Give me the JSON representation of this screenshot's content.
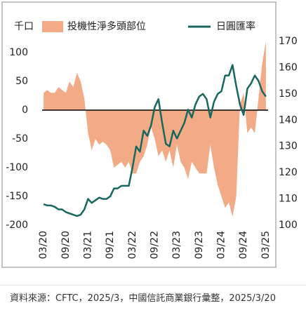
{
  "chart_data": {
    "type": "combo",
    "y_label": "千口",
    "categories": [
      "03/20",
      null,
      null,
      null,
      null,
      null,
      "09/20",
      null,
      null,
      null,
      null,
      null,
      "03/21",
      null,
      null,
      null,
      null,
      null,
      "09/21",
      null,
      null,
      null,
      null,
      null,
      "03/22",
      null,
      null,
      null,
      null,
      null,
      "09/22",
      null,
      null,
      null,
      null,
      null,
      "03/23",
      null,
      null,
      null,
      null,
      null,
      "09/23",
      null,
      null,
      null,
      null,
      null,
      "03/24",
      null,
      null,
      null,
      null,
      null,
      "09/24",
      null,
      null,
      null,
      null,
      null,
      "03/25"
    ],
    "series": [
      {
        "name": "投機性淨多頭部位",
        "type": "area",
        "color": "#f2ab86",
        "values": [
          30,
          35,
          30,
          30,
          40,
          35,
          30,
          50,
          40,
          65,
          50,
          20,
          -40,
          -70,
          -50,
          -60,
          -55,
          -60,
          -70,
          -100,
          -95,
          -90,
          -100,
          -90,
          -110,
          -110,
          -90,
          -80,
          -60,
          -30,
          -50,
          -80,
          -70,
          -90,
          -70,
          -100,
          -60,
          -90,
          -100,
          -120,
          -90,
          -100,
          -110,
          -110,
          -110,
          -60,
          -100,
          -130,
          -150,
          -170,
          -160,
          -185,
          -150,
          10,
          30,
          -40,
          -30,
          -40,
          20,
          80,
          120
        ]
      },
      {
        "name": "日圓匯率",
        "type": "line",
        "axis": "y2",
        "color": "#17675f",
        "values": [
          108,
          107.5,
          107.5,
          107,
          106,
          106,
          105,
          104.5,
          104,
          103.5,
          104,
          106,
          110,
          108.5,
          109.5,
          110.5,
          110,
          110,
          111,
          114,
          114,
          115,
          115,
          115,
          122,
          130,
          128,
          136,
          134,
          138,
          145,
          148,
          139,
          131,
          130,
          136,
          133,
          136,
          139,
          144,
          141,
          146,
          149,
          150,
          148,
          141,
          147,
          150,
          151,
          157,
          157,
          161,
          153,
          146,
          142,
          152,
          154,
          157,
          155,
          151,
          149
        ]
      }
    ],
    "ylim": [
      -200,
      125
    ],
    "yticks": [
      -200,
      -150,
      -100,
      -50,
      0,
      50,
      100
    ],
    "y2lim": [
      100,
      171.2
    ],
    "y2ticks": [
      100,
      110,
      120,
      130,
      140,
      150,
      160,
      170
    ],
    "source": "資料來源：CFTC，2025/3，中國信託商業銀行彙整，2025/3/20"
  }
}
